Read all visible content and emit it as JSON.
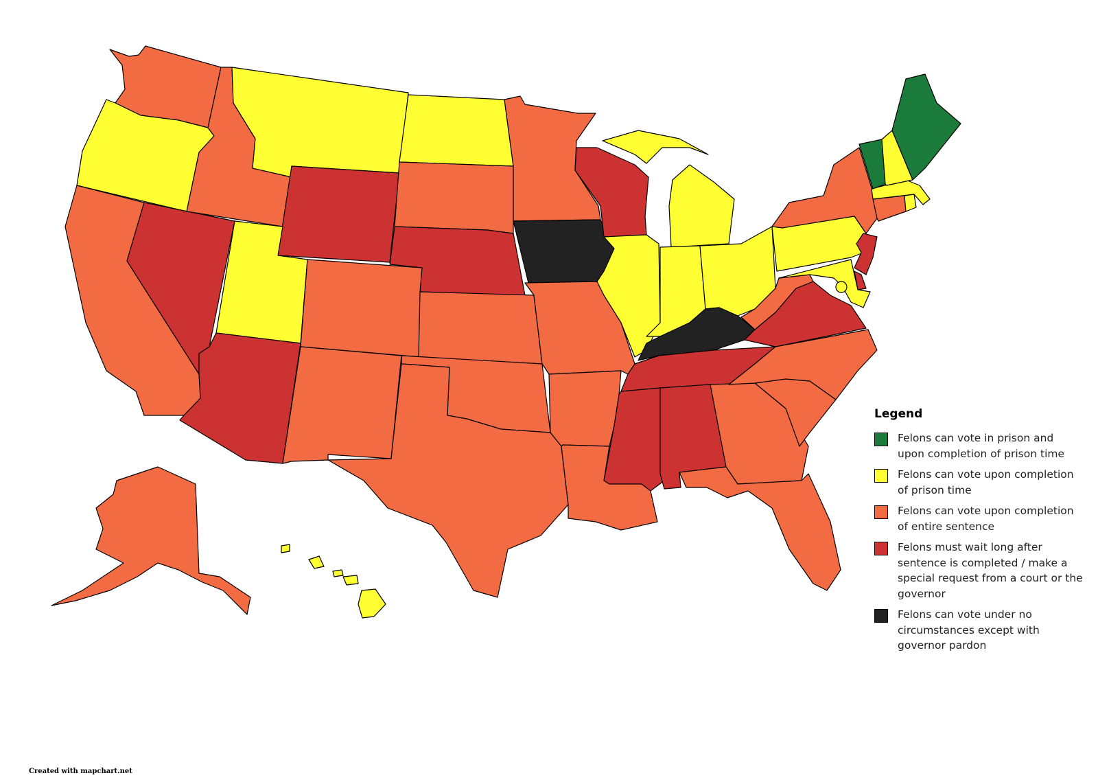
{
  "colors": {
    "green": "#1b7b3a",
    "yellow": "#ffff33",
    "orange": "#f26b42",
    "red": "#cc3232",
    "black": "#222222"
  },
  "legend": {
    "title": "Legend",
    "items": [
      {
        "color": "#1b7b3a",
        "label": "Felons can vote in prison and upon completion of prison time"
      },
      {
        "color": "#ffff33",
        "label": "Felons can vote upon completion of prison time"
      },
      {
        "color": "#f26b42",
        "label": "Felons can vote upon completion of entire sentence"
      },
      {
        "color": "#cc3232",
        "label": "Felons must wait long after sentence is completed / make a special request from a court or the governor"
      },
      {
        "color": "#222222",
        "label": "Felons can vote under no circumstances except with governor pardon"
      }
    ]
  },
  "states": {
    "WA": "orange",
    "OR": "yellow",
    "CA": "orange",
    "NV": "red",
    "ID": "orange",
    "MT": "yellow",
    "WY": "red",
    "UT": "yellow",
    "AZ": "red",
    "CO": "orange",
    "NM": "orange",
    "ND": "yellow",
    "SD": "orange",
    "NE": "red",
    "KS": "orange",
    "OK": "orange",
    "TX": "orange",
    "MN": "orange",
    "IA": "black",
    "MO": "orange",
    "AR": "orange",
    "LA": "orange",
    "WI": "red",
    "IL": "yellow",
    "MI": "yellow",
    "IN": "yellow",
    "OH": "yellow",
    "KY": "black",
    "TN": "red",
    "MS": "red",
    "AL": "red",
    "GA": "orange",
    "FL": "orange",
    "SC": "orange",
    "NC": "orange",
    "VA": "red",
    "WV": "orange",
    "PA": "yellow",
    "NY": "orange",
    "NJ": "red",
    "DE": "red",
    "MD": "yellow",
    "DC": "yellow",
    "CT": "orange",
    "RI": "yellow",
    "MA": "yellow",
    "VT": "green",
    "NH": "yellow",
    "ME": "green",
    "AK": "orange",
    "HI": "yellow"
  },
  "credit": "Created with mapchart.net"
}
